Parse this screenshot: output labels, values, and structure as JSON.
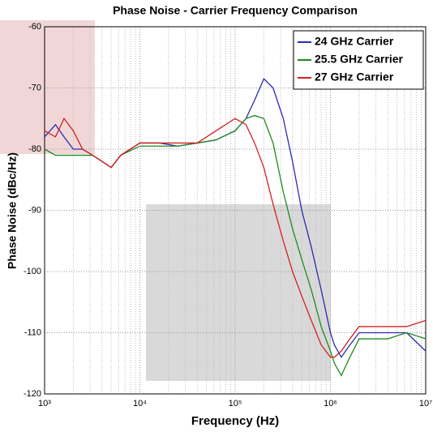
{
  "chart_data": {
    "type": "line",
    "title": "Phase Noise - Carrier Frequency Comparison",
    "x_label": "Frequency (Hz)",
    "y_label": "Phase Noise (dBc/Hz)",
    "log_x": true,
    "grid": true,
    "legend": "upper right",
    "x": [
      1000,
      1300,
      1600,
      2000,
      2500,
      3200,
      4000,
      5000,
      6300,
      10000,
      16000,
      25000,
      40000,
      63000,
      100000,
      130000,
      160000,
      200000,
      250000,
      320000,
      400000,
      500000,
      630000,
      800000,
      1000000,
      1100000,
      1300000,
      1600000,
      2000000,
      2500000,
      4000000,
      6300000,
      10000000
    ],
    "series": [
      {
        "name": "24 GHz Carrier",
        "color": "#2b2bb0",
        "values": [
          -78,
          -76,
          -78,
          -80,
          -80,
          -81,
          -82,
          -83,
          -81,
          -79,
          -79,
          -79.5,
          -79,
          -78.5,
          -77,
          -75,
          -72,
          -68.5,
          -70,
          -75,
          -82,
          -90,
          -96,
          -103,
          -110,
          -112,
          -114,
          -112,
          -110,
          -110,
          -110,
          -110,
          -113
        ]
      },
      {
        "name": "25.5 GHz Carrier",
        "color": "#1e8a1e",
        "values": [
          -80,
          -81,
          -81,
          -81,
          -81,
          -81,
          -82,
          -83,
          -81,
          -79.5,
          -79.5,
          -79.5,
          -79,
          -78.5,
          -77,
          -75,
          -74.5,
          -75,
          -79,
          -87,
          -93,
          -98,
          -103,
          -109,
          -113,
          -115,
          -117,
          -114,
          -111,
          -111,
          -111,
          -110,
          -111
        ]
      },
      {
        "name": "27 GHz Carrier",
        "color": "#d42020",
        "values": [
          -77,
          -78,
          -75,
          -77,
          -80,
          -81,
          -82,
          -83,
          -81,
          -79,
          -79,
          -79,
          -79,
          -77,
          -75,
          -76,
          -79,
          -83,
          -89,
          -95,
          -100,
          -104,
          -108,
          -112,
          -114,
          -114,
          -113,
          -111,
          -109,
          -109,
          -109,
          -109,
          -108
        ]
      }
    ],
    "xlim": [
      1000,
      10000000
    ],
    "xticks": [
      {
        "value": 1000,
        "label": "10³"
      },
      {
        "value": 10000,
        "label": "10⁴"
      },
      {
        "value": 100000,
        "label": "10⁵"
      },
      {
        "value": 1000000,
        "label": "10⁶"
      },
      {
        "value": 10000000,
        "label": "10⁷"
      }
    ],
    "ylim": [
      -120,
      -60
    ],
    "yticks": [
      -120,
      -110,
      -100,
      -90,
      -80,
      -70,
      -60
    ]
  }
}
